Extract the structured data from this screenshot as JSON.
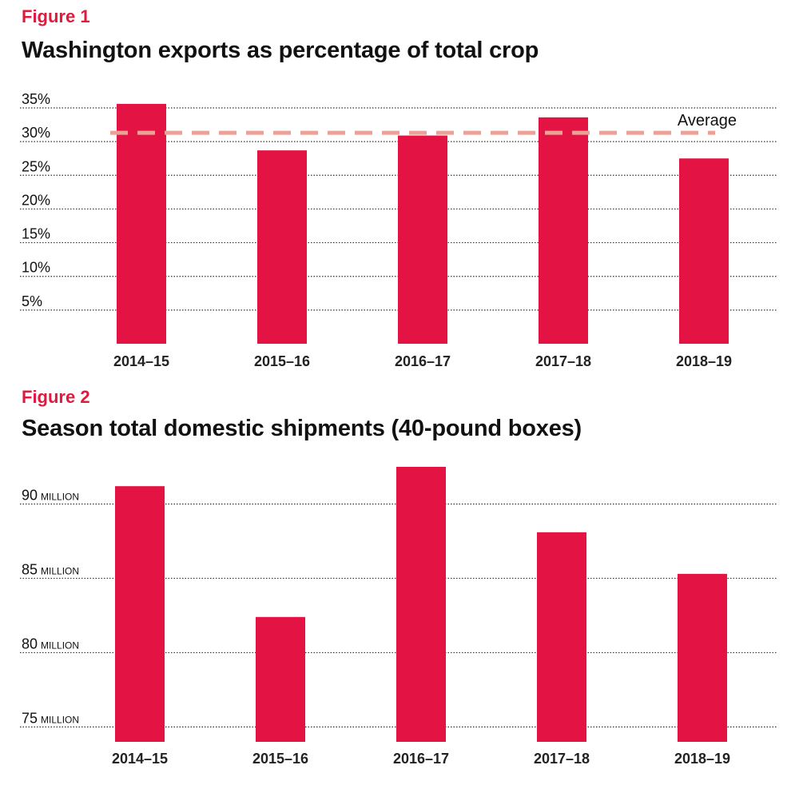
{
  "colors": {
    "accent": "#e01a3f",
    "bar": "#e31443",
    "average": "#eba196",
    "text": "#111111"
  },
  "chart_data": [
    {
      "type": "bar",
      "label": "Figure 1",
      "title": "Washington exports as percentage of total crop",
      "categories": [
        "2014–15",
        "2015–16",
        "2016–17",
        "2017–18",
        "2018–19"
      ],
      "values": [
        35.6,
        28.7,
        30.9,
        33.6,
        27.5
      ],
      "ylim": [
        0,
        35
      ],
      "yticks": [
        5,
        10,
        15,
        20,
        25,
        30,
        35
      ],
      "ytick_labels": [
        "5%",
        "10%",
        "15%",
        "20%",
        "25%",
        "30%",
        "35%"
      ],
      "average": {
        "label": "Average",
        "value": 31.3
      },
      "grid": true
    },
    {
      "type": "bar",
      "label": "Figure 2",
      "title": "Season total domestic shipments (40-pound boxes)",
      "categories": [
        "2014–15",
        "2015–16",
        "2016–17",
        "2017–18",
        "2018–19"
      ],
      "values": [
        91.2,
        82.4,
        92.5,
        88.1,
        85.3
      ],
      "ylim": [
        74,
        92.5
      ],
      "yticks": [
        75,
        80,
        85,
        90
      ],
      "ytick_labels": [
        "75",
        "80",
        "85",
        "90"
      ],
      "ytick_unit": "MILLION",
      "grid": true
    }
  ]
}
